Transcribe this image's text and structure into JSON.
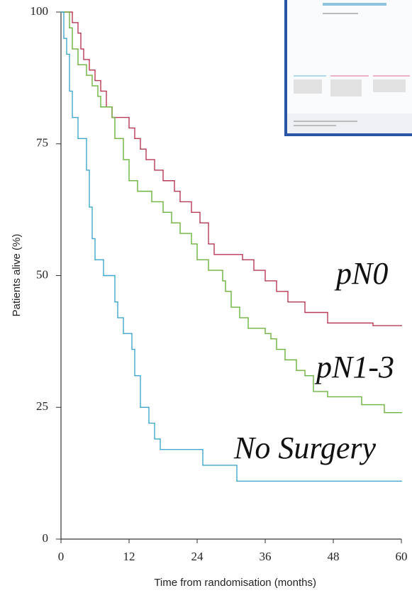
{
  "chart_data": {
    "type": "step",
    "xlabel": "Time from randomisation (months)",
    "ylabel": "Patients alive (%)",
    "xlim": [
      0,
      60
    ],
    "xticks": [
      0,
      12,
      24,
      36,
      48,
      60
    ],
    "ylim": [
      0,
      100
    ],
    "yticks": [
      0,
      25,
      50,
      75,
      100
    ],
    "annotations": [
      "pN0",
      "pN1-3",
      "No Surgery"
    ],
    "series": [
      {
        "name": "pN0",
        "color": "#b83a55",
        "x": [
          0,
          2,
          3,
          3.5,
          4,
          5,
          6,
          7,
          8,
          9,
          12,
          13,
          14,
          15,
          16.5,
          18,
          20,
          21,
          23,
          24.5,
          26,
          27,
          32,
          34,
          36,
          38,
          40,
          43,
          47,
          55,
          60
        ],
        "values": [
          100,
          98,
          96,
          93,
          91,
          89,
          87,
          85,
          82,
          80,
          78,
          76,
          74,
          72,
          70,
          68,
          66,
          64,
          62,
          60,
          56,
          54,
          53,
          51,
          49,
          47,
          45,
          43,
          41,
          40.5,
          40.5
        ]
      },
      {
        "name": "pN1-3",
        "color": "#6db33f",
        "x": [
          0,
          1.5,
          2,
          3,
          4.5,
          5.5,
          6.5,
          7,
          9,
          9.5,
          11,
          12,
          13.5,
          16,
          18,
          19.5,
          21,
          23,
          24,
          26,
          28.5,
          29,
          30,
          31.5,
          33,
          36,
          37,
          38,
          39.5,
          41.5,
          43,
          44.5,
          47,
          53,
          57,
          60
        ],
        "values": [
          100,
          97,
          93,
          90,
          88,
          86,
          84,
          82,
          80,
          76,
          72,
          68,
          66,
          64,
          62,
          60,
          58,
          56,
          53,
          51,
          49,
          47,
          44,
          42,
          40,
          39,
          38,
          36,
          34,
          32,
          31,
          28,
          27,
          25.5,
          24,
          24
        ]
      },
      {
        "name": "No Surgery",
        "color": "#3ea8cf",
        "x": [
          0,
          0.5,
          1,
          1.5,
          2,
          3,
          4.5,
          5,
          5.5,
          6,
          7.5,
          9.5,
          10,
          11,
          12.5,
          13,
          14,
          15.5,
          16.5,
          17.5,
          25,
          31,
          60
        ],
        "values": [
          100,
          95,
          92,
          85,
          80,
          76,
          70,
          63,
          57,
          53,
          50,
          45,
          42,
          39,
          36,
          31,
          25,
          22,
          19,
          17,
          14,
          11,
          11
        ]
      }
    ]
  }
}
